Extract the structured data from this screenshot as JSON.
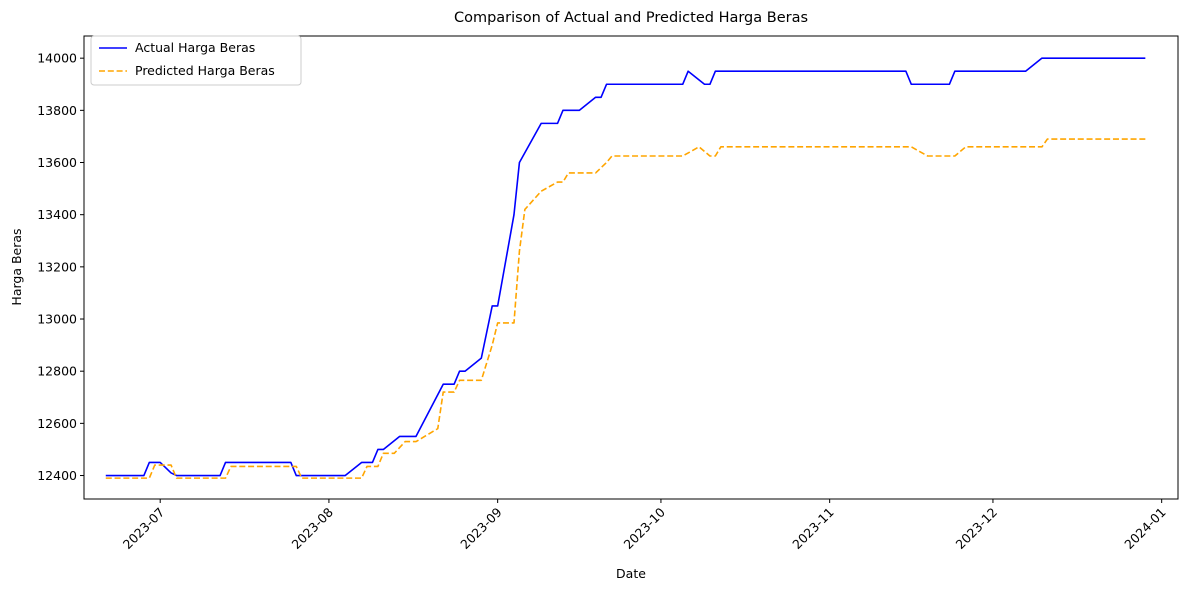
{
  "chart_data": {
    "type": "line",
    "title": "Comparison of Actual and Predicted Harga Beras",
    "xlabel": "Date",
    "ylabel": "Harga Beras",
    "x_axis_type": "date",
    "xlim": [
      "2023-06-17",
      "2024-01-04"
    ],
    "ylim": [
      12310,
      14085
    ],
    "x_ticks": [
      "2023-07",
      "2023-08",
      "2023-09",
      "2023-10",
      "2023-11",
      "2023-12",
      "2024-01"
    ],
    "y_ticks": [
      12400,
      12600,
      12800,
      13000,
      13200,
      13400,
      13600,
      13800,
      14000
    ],
    "x_tick_rotation_deg": 45,
    "grid": false,
    "legend_position": "top-left",
    "series": [
      {
        "name": "Actual Harga Beras",
        "color": "#0000ff",
        "line_style": "solid",
        "points": [
          [
            "2023-06-21",
            12400
          ],
          [
            "2023-06-28",
            12400
          ],
          [
            "2023-06-29",
            12450
          ],
          [
            "2023-07-01",
            12450
          ],
          [
            "2023-07-03",
            12410
          ],
          [
            "2023-07-04",
            12400
          ],
          [
            "2023-07-12",
            12400
          ],
          [
            "2023-07-13",
            12450
          ],
          [
            "2023-07-25",
            12450
          ],
          [
            "2023-07-26",
            12400
          ],
          [
            "2023-08-04",
            12400
          ],
          [
            "2023-08-07",
            12450
          ],
          [
            "2023-08-09",
            12450
          ],
          [
            "2023-08-10",
            12500
          ],
          [
            "2023-08-11",
            12500
          ],
          [
            "2023-08-14",
            12550
          ],
          [
            "2023-08-17",
            12550
          ],
          [
            "2023-08-22",
            12750
          ],
          [
            "2023-08-24",
            12750
          ],
          [
            "2023-08-25",
            12800
          ],
          [
            "2023-08-26",
            12800
          ],
          [
            "2023-08-29",
            12850
          ],
          [
            "2023-08-31",
            13050
          ],
          [
            "2023-09-01",
            13050
          ],
          [
            "2023-09-04",
            13400
          ],
          [
            "2023-09-05",
            13600
          ],
          [
            "2023-09-09",
            13750
          ],
          [
            "2023-09-12",
            13750
          ],
          [
            "2023-09-13",
            13800
          ],
          [
            "2023-09-16",
            13800
          ],
          [
            "2023-09-19",
            13850
          ],
          [
            "2023-09-20",
            13850
          ],
          [
            "2023-09-21",
            13900
          ],
          [
            "2023-10-05",
            13900
          ],
          [
            "2023-10-06",
            13950
          ],
          [
            "2023-10-09",
            13900
          ],
          [
            "2023-10-10",
            13900
          ],
          [
            "2023-10-11",
            13950
          ],
          [
            "2023-11-15",
            13950
          ],
          [
            "2023-11-16",
            13900
          ],
          [
            "2023-11-23",
            13900
          ],
          [
            "2023-11-24",
            13950
          ],
          [
            "2023-12-07",
            13950
          ],
          [
            "2023-12-10",
            14000
          ],
          [
            "2023-12-29",
            14000
          ]
        ]
      },
      {
        "name": "Predicted Harga Beras",
        "color": "#ffa500",
        "line_style": "dashed",
        "points": [
          [
            "2023-06-21",
            12390
          ],
          [
            "2023-06-29",
            12390
          ],
          [
            "2023-06-30",
            12440
          ],
          [
            "2023-07-03",
            12440
          ],
          [
            "2023-07-04",
            12390
          ],
          [
            "2023-07-13",
            12390
          ],
          [
            "2023-07-14",
            12435
          ],
          [
            "2023-07-26",
            12435
          ],
          [
            "2023-07-27",
            12390
          ],
          [
            "2023-08-07",
            12390
          ],
          [
            "2023-08-08",
            12435
          ],
          [
            "2023-08-10",
            12435
          ],
          [
            "2023-08-11",
            12485
          ],
          [
            "2023-08-13",
            12485
          ],
          [
            "2023-08-15",
            12530
          ],
          [
            "2023-08-17",
            12530
          ],
          [
            "2023-08-21",
            12580
          ],
          [
            "2023-08-22",
            12720
          ],
          [
            "2023-08-24",
            12720
          ],
          [
            "2023-08-25",
            12765
          ],
          [
            "2023-08-29",
            12765
          ],
          [
            "2023-08-31",
            12900
          ],
          [
            "2023-09-01",
            12985
          ],
          [
            "2023-09-04",
            12985
          ],
          [
            "2023-09-05",
            13260
          ],
          [
            "2023-09-06",
            13420
          ],
          [
            "2023-09-09",
            13490
          ],
          [
            "2023-09-12",
            13525
          ],
          [
            "2023-09-13",
            13525
          ],
          [
            "2023-09-14",
            13560
          ],
          [
            "2023-09-19",
            13560
          ],
          [
            "2023-09-21",
            13600
          ],
          [
            "2023-09-22",
            13625
          ],
          [
            "2023-10-05",
            13625
          ],
          [
            "2023-10-08",
            13660
          ],
          [
            "2023-10-10",
            13625
          ],
          [
            "2023-10-11",
            13625
          ],
          [
            "2023-10-12",
            13660
          ],
          [
            "2023-11-16",
            13660
          ],
          [
            "2023-11-19",
            13625
          ],
          [
            "2023-11-24",
            13625
          ],
          [
            "2023-11-26",
            13660
          ],
          [
            "2023-12-10",
            13660
          ],
          [
            "2023-12-11",
            13690
          ],
          [
            "2023-12-29",
            13690
          ]
        ]
      }
    ]
  }
}
